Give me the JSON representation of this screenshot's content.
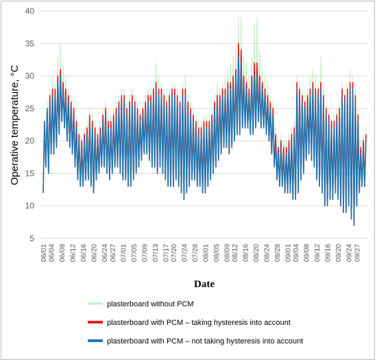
{
  "chart_data": {
    "type": "line",
    "title": "",
    "xlabel": "Date",
    "ylabel": "Operative temperature, °C",
    "ylim": [
      5,
      40
    ],
    "yticks": [
      5,
      10,
      15,
      20,
      25,
      30,
      35,
      40
    ],
    "grid": "horizontal",
    "legend_position": "bottom",
    "x_ticks": [
      "06/01",
      "06/04",
      "06/08",
      "06/12",
      "06/16",
      "06/20",
      "06/24",
      "06/27",
      "07/01",
      "07/05",
      "07/09",
      "07/13",
      "07/17",
      "07/20",
      "07/24",
      "07/28",
      "08/01",
      "08/05",
      "08/09",
      "08/12",
      "08/16",
      "08/20",
      "08/24",
      "08/28",
      "09/01",
      "09/04",
      "09/08",
      "09/12",
      "09/16",
      "09/20",
      "09/24",
      "09/27"
    ],
    "daily_summary_note": "approximate daily minimum and maximum operative temperature per series, 06/01 to 09/30",
    "days": [
      "06/01",
      "06/02",
      "06/03",
      "06/04",
      "06/05",
      "06/06",
      "06/07",
      "06/08",
      "06/09",
      "06/10",
      "06/11",
      "06/12",
      "06/13",
      "06/14",
      "06/15",
      "06/16",
      "06/17",
      "06/18",
      "06/19",
      "06/20",
      "06/21",
      "06/22",
      "06/23",
      "06/24",
      "06/25",
      "06/26",
      "06/27",
      "06/28",
      "06/29",
      "06/30",
      "07/01",
      "07/02",
      "07/03",
      "07/04",
      "07/05",
      "07/06",
      "07/07",
      "07/08",
      "07/09",
      "07/10",
      "07/11",
      "07/12",
      "07/13",
      "07/14",
      "07/15",
      "07/16",
      "07/17",
      "07/18",
      "07/19",
      "07/20",
      "07/21",
      "07/22",
      "07/23",
      "07/24",
      "07/25",
      "07/26",
      "07/27",
      "07/28",
      "07/29",
      "07/30",
      "07/31",
      "08/01",
      "08/02",
      "08/03",
      "08/04",
      "08/05",
      "08/06",
      "08/07",
      "08/08",
      "08/09",
      "08/10",
      "08/11",
      "08/12",
      "08/13",
      "08/14",
      "08/15",
      "08/16",
      "08/17",
      "08/18",
      "08/19",
      "08/20",
      "08/21",
      "08/22",
      "08/23",
      "08/24",
      "08/25",
      "08/26",
      "08/27",
      "08/28",
      "08/29",
      "08/30",
      "08/31",
      "09/01",
      "09/02",
      "09/03",
      "09/04",
      "09/05",
      "09/06",
      "09/07",
      "09/08",
      "09/09",
      "09/10",
      "09/11",
      "09/12",
      "09/13",
      "09/14",
      "09/15",
      "09/16",
      "09/17",
      "09/18",
      "09/19",
      "09/20",
      "09/21",
      "09/22",
      "09/23",
      "09/24",
      "09/25",
      "09/26",
      "09/27",
      "09/28",
      "09/29",
      "09/30"
    ],
    "series": [
      {
        "name": "plasterboard without PCM",
        "color": "#c6efc6",
        "daily_min": [
          12,
          16,
          15,
          18,
          18,
          19,
          21,
          23,
          22,
          20,
          19,
          18,
          16,
          14,
          13,
          13,
          14,
          14,
          13,
          12,
          14,
          15,
          16,
          16,
          15,
          14,
          15,
          16,
          16,
          15,
          14,
          14,
          13,
          13,
          14,
          15,
          16,
          17,
          18,
          18,
          17,
          16,
          16,
          15,
          16,
          15,
          14,
          13,
          13,
          13,
          14,
          13,
          12,
          11,
          12,
          13,
          14,
          14,
          13,
          13,
          12,
          12,
          13,
          14,
          15,
          16,
          17,
          18,
          19,
          19,
          18,
          19,
          20,
          21,
          21,
          22,
          22,
          22,
          21,
          21,
          22,
          23,
          22,
          22,
          21,
          20,
          18,
          16,
          14,
          13,
          13,
          12,
          12,
          12,
          11,
          11,
          12,
          14,
          15,
          17,
          18,
          17,
          16,
          14,
          13,
          12,
          10,
          10,
          11,
          11,
          12,
          11,
          10,
          9,
          9,
          10,
          8,
          7,
          10,
          12,
          13,
          13
        ],
        "daily_max": [
          23,
          26,
          28,
          30,
          29,
          33,
          35,
          32,
          30,
          28,
          27,
          26,
          24,
          22,
          21,
          22,
          23,
          25,
          24,
          23,
          22,
          23,
          25,
          26,
          24,
          24,
          25,
          26,
          27,
          28,
          28,
          26,
          27,
          28,
          27,
          26,
          25,
          26,
          27,
          28,
          28,
          29,
          32,
          30,
          29,
          28,
          27,
          28,
          29,
          29,
          28,
          27,
          29,
          30,
          27,
          26,
          25,
          24,
          23,
          23,
          24,
          24,
          24,
          25,
          27,
          29,
          28,
          29,
          30,
          31,
          32,
          33,
          34,
          39,
          39,
          33,
          32,
          30,
          33,
          38,
          39,
          34,
          31,
          30,
          29,
          27,
          26,
          22,
          20,
          21,
          20,
          20,
          21,
          22,
          23,
          30,
          29,
          28,
          27,
          28,
          30,
          31,
          30,
          29,
          33,
          28,
          26,
          25,
          24,
          24,
          25,
          26,
          29,
          28,
          29,
          31,
          30,
          28,
          25,
          20,
          21,
          22
        ]
      },
      {
        "name": "plasterboard with PCM – taking hysteresis into account",
        "color": "#e31a1c",
        "daily_min": [
          12,
          16,
          15,
          18,
          18,
          19,
          21,
          23,
          22,
          20,
          19,
          18,
          16,
          14,
          13,
          13,
          14,
          14,
          13,
          12,
          14,
          15,
          16,
          16,
          15,
          14,
          15,
          16,
          16,
          15,
          14,
          14,
          13,
          13,
          14,
          15,
          16,
          17,
          18,
          18,
          17,
          16,
          16,
          15,
          16,
          15,
          14,
          13,
          13,
          13,
          14,
          13,
          12,
          11,
          12,
          13,
          14,
          14,
          13,
          13,
          12,
          12,
          13,
          14,
          15,
          16,
          17,
          18,
          19,
          19,
          18,
          19,
          20,
          21,
          21,
          22,
          22,
          22,
          21,
          21,
          22,
          23,
          22,
          22,
          21,
          20,
          18,
          16,
          14,
          13,
          13,
          12,
          12,
          12,
          11,
          11,
          12,
          14,
          15,
          17,
          18,
          17,
          16,
          14,
          13,
          12,
          10,
          10,
          11,
          11,
          12,
          11,
          10,
          9,
          9,
          10,
          8,
          7,
          10,
          12,
          13,
          13
        ],
        "daily_max": [
          23,
          25,
          27,
          28,
          28,
          30,
          31,
          29,
          28,
          27,
          26,
          25,
          23,
          21,
          20,
          21,
          22,
          24,
          23,
          22,
          21,
          22,
          24,
          25,
          23,
          23,
          24,
          25,
          26,
          27,
          27,
          25,
          26,
          27,
          26,
          25,
          24,
          25,
          26,
          27,
          27,
          28,
          29,
          28,
          28,
          27,
          26,
          27,
          28,
          28,
          27,
          26,
          28,
          28,
          26,
          25,
          24,
          23,
          22,
          22,
          23,
          23,
          23,
          24,
          26,
          27,
          27,
          28,
          28,
          29,
          29,
          30,
          31,
          35,
          34,
          30,
          29,
          28,
          30,
          32,
          32,
          30,
          29,
          28,
          27,
          26,
          25,
          21,
          19,
          20,
          19,
          19,
          20,
          21,
          22,
          29,
          28,
          27,
          26,
          27,
          28,
          29,
          28,
          28,
          29,
          27,
          25,
          24,
          23,
          23,
          24,
          25,
          28,
          27,
          28,
          29,
          29,
          27,
          24,
          19,
          20,
          21
        ]
      },
      {
        "name": "plasterboard with PCM – not taking hysteresis into account",
        "color": "#1f78b4",
        "daily_min": [
          12,
          16,
          15,
          18,
          18,
          19,
          21,
          23,
          22,
          20,
          19,
          18,
          16,
          14,
          13,
          13,
          14,
          14,
          13,
          12,
          14,
          15,
          16,
          16,
          15,
          14,
          15,
          16,
          16,
          15,
          14,
          14,
          13,
          13,
          14,
          15,
          16,
          17,
          18,
          18,
          17,
          16,
          16,
          15,
          16,
          15,
          14,
          13,
          13,
          13,
          14,
          13,
          12,
          11,
          12,
          13,
          14,
          14,
          13,
          13,
          12,
          12,
          13,
          14,
          15,
          16,
          17,
          18,
          19,
          19,
          18,
          19,
          20,
          21,
          21,
          22,
          22,
          22,
          21,
          21,
          22,
          23,
          22,
          22,
          21,
          20,
          18,
          16,
          14,
          13,
          13,
          12,
          12,
          12,
          11,
          11,
          12,
          14,
          15,
          17,
          18,
          17,
          16,
          14,
          13,
          12,
          10,
          10,
          11,
          11,
          12,
          11,
          10,
          9,
          9,
          10,
          8,
          7,
          10,
          12,
          13,
          13
        ],
        "daily_max": [
          23,
          25,
          26,
          27,
          27,
          29,
          30,
          28,
          27,
          26,
          25,
          24,
          22,
          20,
          19,
          20,
          21,
          23,
          22,
          21,
          20,
          21,
          23,
          24,
          22,
          22,
          23,
          24,
          25,
          26,
          26,
          24,
          25,
          26,
          25,
          24,
          23,
          24,
          25,
          26,
          26,
          27,
          28,
          27,
          27,
          26,
          25,
          26,
          27,
          27,
          26,
          25,
          27,
          27,
          25,
          24,
          23,
          22,
          21,
          21,
          22,
          22,
          22,
          23,
          25,
          26,
          26,
          27,
          27,
          28,
          28,
          29,
          30,
          33,
          32,
          29,
          28,
          27,
          29,
          30,
          30,
          29,
          28,
          27,
          26,
          25,
          24,
          20,
          18,
          19,
          18,
          18,
          19,
          20,
          21,
          28,
          27,
          26,
          25,
          26,
          27,
          28,
          27,
          27,
          28,
          26,
          24,
          23,
          22,
          22,
          23,
          24,
          27,
          26,
          27,
          28,
          28,
          26,
          23,
          18,
          19,
          20
        ]
      }
    ]
  }
}
